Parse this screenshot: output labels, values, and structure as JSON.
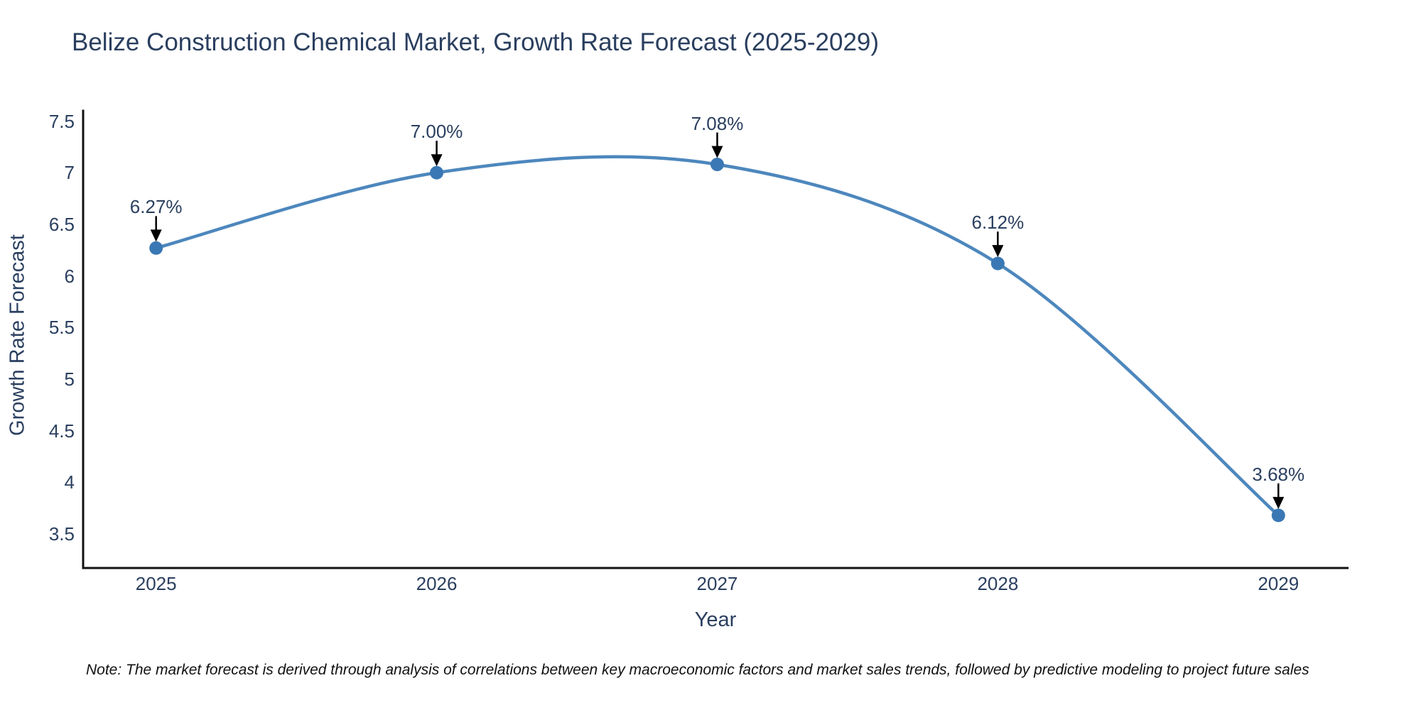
{
  "chart_data": {
    "type": "line",
    "title": "Belize Construction Chemical Market, Growth Rate Forecast (2025-2029)",
    "xlabel": "Year",
    "ylabel": "Growth Rate Forecast",
    "categories": [
      "2025",
      "2026",
      "2027",
      "2028",
      "2029"
    ],
    "x": [
      2025,
      2026,
      2027,
      2028,
      2029
    ],
    "series": [
      {
        "name": "Growth Rate Forecast",
        "values": [
          6.27,
          7.0,
          7.08,
          6.12,
          3.68
        ],
        "point_labels": [
          "6.27%",
          "7.00%",
          "7.08%",
          "6.12%",
          "3.68%"
        ]
      }
    ],
    "line_shape": "spline",
    "markers": true,
    "grid": false,
    "legend_position": "none",
    "x_range": [
      2024.74,
      2029.25
    ],
    "ylim": [
      3.17,
      7.6
    ],
    "ytick_labels": [
      "3.5",
      "4",
      "4.5",
      "5",
      "5.5",
      "6",
      "6.5",
      "7",
      "7.5"
    ],
    "yticks": [
      3.5,
      4,
      4.5,
      5,
      5.5,
      6,
      6.5,
      7,
      7.5
    ],
    "colors": {
      "line": "#4d87bd",
      "marker": "#3a78b5",
      "axis": "#111111",
      "text": "#2a3f5f",
      "arrow": "#000000",
      "background": "#ffffff"
    }
  },
  "note": "Note: The market forecast is derived through analysis of correlations between key macroeconomic factors and market sales trends, followed by predictive modeling to project future sales"
}
